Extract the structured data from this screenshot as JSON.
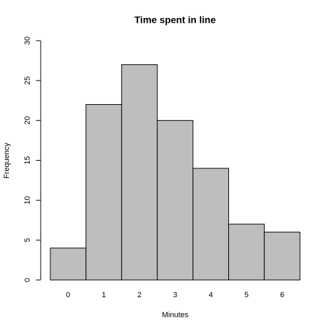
{
  "chart_data": {
    "type": "bar",
    "title": "Time spent in line",
    "x_label": "Minutes",
    "y_label": "Frequency",
    "categories": [
      "0",
      "1",
      "2",
      "3",
      "4",
      "5",
      "6"
    ],
    "values": [
      4,
      22,
      27,
      20,
      14,
      7,
      6
    ],
    "color": "#bebebe",
    "ylim": [
      0,
      30
    ],
    "yticks": [
      0,
      5,
      10,
      15,
      20,
      25,
      30
    ]
  }
}
